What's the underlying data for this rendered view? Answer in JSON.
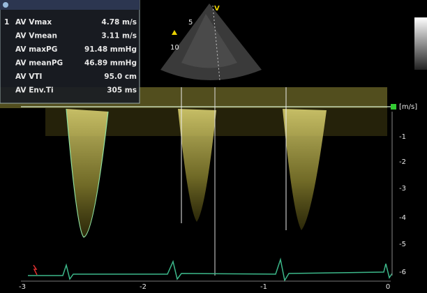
{
  "measurements": {
    "index": "1",
    "rows": [
      {
        "label": "AV Vmax",
        "value": "4.78 m/s"
      },
      {
        "label": "AV Vmean",
        "value": "3.11 m/s"
      },
      {
        "label": "AV maxPG",
        "value": "91.48 mmHg"
      },
      {
        "label": "AV meanPG",
        "value": "46.89 mmHg"
      },
      {
        "label": "AV VTI",
        "value": "95.0 cm"
      },
      {
        "label": "AV Env.Ti",
        "value": "305 ms"
      }
    ]
  },
  "sector": {
    "marker": "V",
    "depth_labels": [
      "5",
      "10"
    ]
  },
  "velocity_scale": {
    "unit": "[m/s]",
    "labels": [
      "-1",
      "-2",
      "-3",
      "-4",
      "-5",
      "-6"
    ]
  },
  "time_axis": {
    "labels": [
      "-3",
      "-2",
      "-1",
      "0"
    ]
  }
}
